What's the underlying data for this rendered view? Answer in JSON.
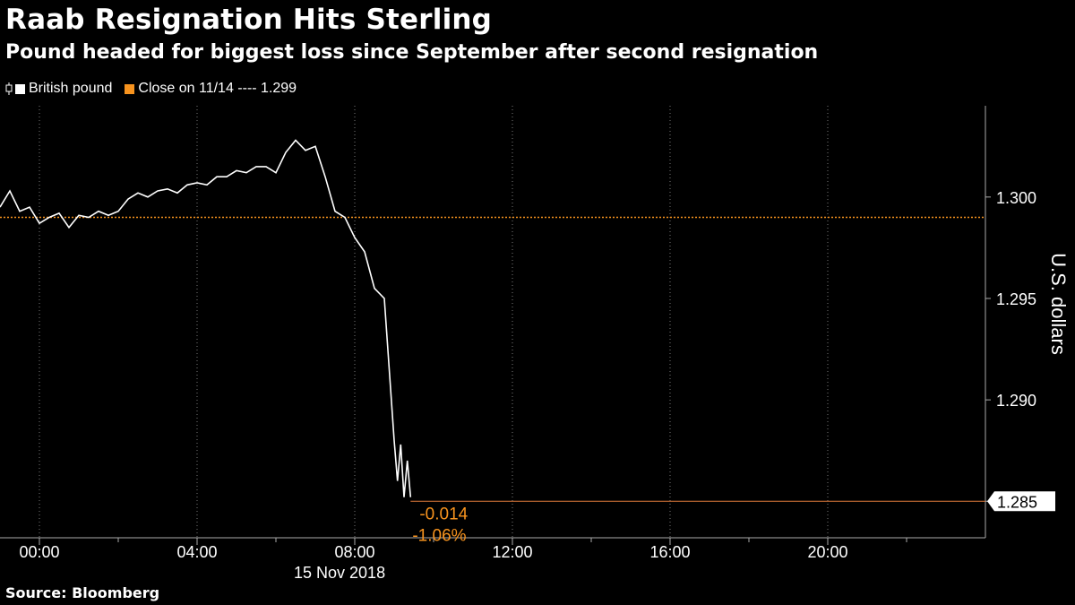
{
  "header": {
    "title": "Raab Resignation Hits Sterling",
    "subtitle": "Pound headed for biggest loss since September after second resignation"
  },
  "legend": {
    "items": [
      {
        "label": "British pound",
        "color": "#ffffff",
        "icon": "candlestick-icon"
      },
      {
        "label": "Close on 11/14 ---- 1.299",
        "color": "#f7931e"
      }
    ]
  },
  "source": "Source:  Bloomberg",
  "colors": {
    "series": "#ffffff",
    "reference": "#f7931e",
    "last_value_line": "#e07a3a",
    "grid": "#7a7a7a"
  },
  "chart_data": {
    "type": "line",
    "series": [
      {
        "name": "British pound",
        "x": [
          "23:00",
          "23:15",
          "23:30",
          "23:45",
          "00:00",
          "00:15",
          "00:30",
          "00:45",
          "01:00",
          "01:15",
          "01:30",
          "01:45",
          "02:00",
          "02:15",
          "02:30",
          "02:45",
          "03:00",
          "03:15",
          "03:30",
          "03:45",
          "04:00",
          "04:15",
          "04:30",
          "04:45",
          "05:00",
          "05:15",
          "05:30",
          "05:45",
          "06:00",
          "06:15",
          "06:30",
          "06:45",
          "07:00",
          "07:15",
          "07:30",
          "07:45",
          "08:00",
          "08:15",
          "08:30",
          "08:45",
          "09:00",
          "09:05",
          "09:10",
          "09:15",
          "09:20",
          "09:25"
        ],
        "values": [
          1.2995,
          1.3003,
          1.2993,
          1.2995,
          1.2987,
          1.299,
          1.2992,
          1.2985,
          1.2991,
          1.299,
          1.2993,
          1.2991,
          1.2993,
          1.2999,
          1.3002,
          1.3,
          1.3003,
          1.3004,
          1.3002,
          1.3006,
          1.3007,
          1.3006,
          1.301,
          1.301,
          1.3013,
          1.3012,
          1.3015,
          1.3015,
          1.3012,
          1.3022,
          1.3028,
          1.3023,
          1.3025,
          1.301,
          1.2993,
          1.299,
          1.298,
          1.2973,
          1.2955,
          1.295,
          1.288,
          1.286,
          1.2878,
          1.2852,
          1.287,
          1.2852
        ]
      }
    ],
    "reference_line": {
      "label": "Close on 11/14",
      "value": 1.299
    },
    "last_value": "1.285",
    "annotations": [
      "-0.014",
      "-1.06%"
    ],
    "x_ticks": [
      "00:00",
      "04:00",
      "08:00",
      "12:00",
      "16:00",
      "20:00"
    ],
    "x_minor_ticks": [
      "02:00",
      "06:00",
      "10:00",
      "14:00",
      "18:00",
      "22:00"
    ],
    "xlabel": "15 Nov 2018",
    "y_ticks": [
      "1.300",
      "1.295",
      "1.290",
      "1.285"
    ],
    "ylabel": "U.S. dollars",
    "x_range": [
      "23:00",
      "24:00"
    ],
    "ylim": [
      1.2832,
      1.3045
    ],
    "grid": "vertical dotted",
    "y_axis_position": "right"
  }
}
